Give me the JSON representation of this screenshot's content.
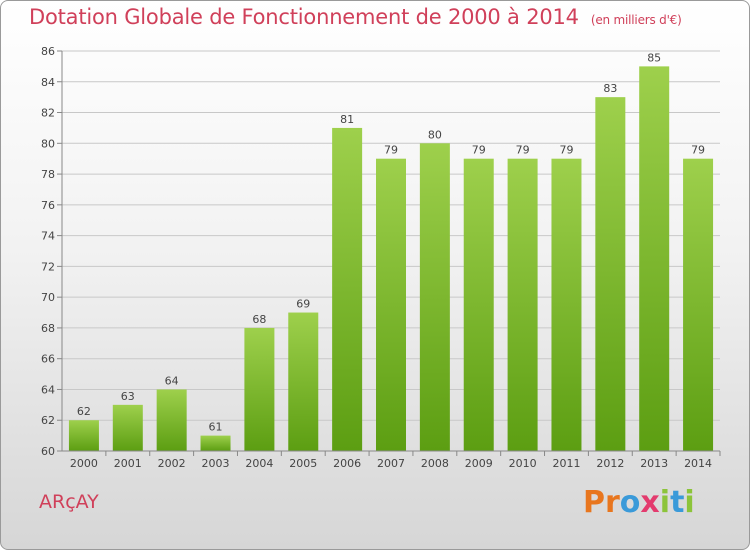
{
  "header": {
    "title": "Dotation Globale de Fonctionnement de 2000 à 2014",
    "subtitle": "(en milliers d'€)"
  },
  "footer": {
    "town": "ARçAY",
    "logo": "Proxiti"
  },
  "chart_data": {
    "type": "bar",
    "title": "Dotation Globale de Fonctionnement de 2000 à 2014",
    "subtitle": "(en milliers d'€)",
    "categories": [
      "2000",
      "2001",
      "2002",
      "2003",
      "2004",
      "2005",
      "2006",
      "2007",
      "2008",
      "2009",
      "2010",
      "2011",
      "2012",
      "2013",
      "2014"
    ],
    "values": [
      62,
      63,
      64,
      61,
      68,
      69,
      81,
      79,
      80,
      79,
      79,
      79,
      83,
      85,
      79
    ],
    "ylim": [
      60,
      86
    ],
    "yticks": [
      60,
      62,
      64,
      66,
      68,
      70,
      72,
      74,
      76,
      78,
      80,
      82,
      84,
      86
    ],
    "grid": true,
    "bar_color": "#7cbd2c"
  }
}
